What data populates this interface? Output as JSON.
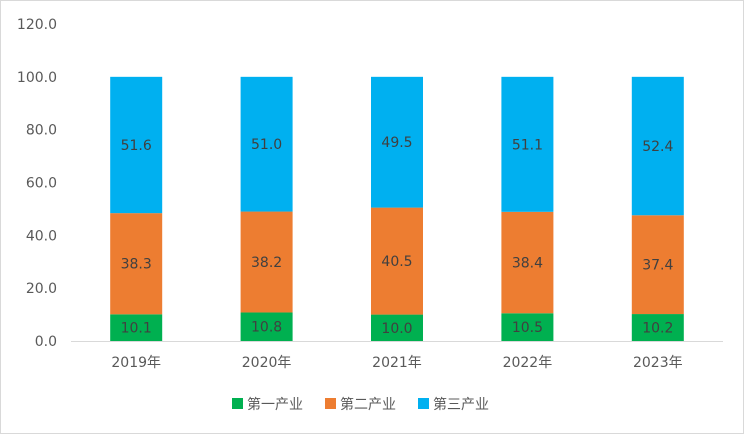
{
  "chart_data": {
    "type": "bar",
    "stacked": true,
    "categories": [
      "2019年",
      "2020年",
      "2021年",
      "2022年",
      "2023年"
    ],
    "series": [
      {
        "name": "第一产业",
        "values": [
          10.1,
          10.8,
          10.0,
          10.5,
          10.2
        ],
        "color": "#00b050"
      },
      {
        "name": "第二产业",
        "values": [
          38.3,
          38.2,
          40.5,
          38.4,
          37.4
        ],
        "color": "#ed7d31"
      },
      {
        "name": "第三产业",
        "values": [
          51.6,
          51.0,
          49.5,
          51.1,
          52.4
        ],
        "color": "#00b0f0"
      }
    ],
    "ylim": [
      0,
      120
    ],
    "yticks": [
      "0.0",
      "20.0",
      "40.0",
      "60.0",
      "80.0",
      "100.0",
      "120.0"
    ],
    "grid": false,
    "legend": "bottom"
  }
}
